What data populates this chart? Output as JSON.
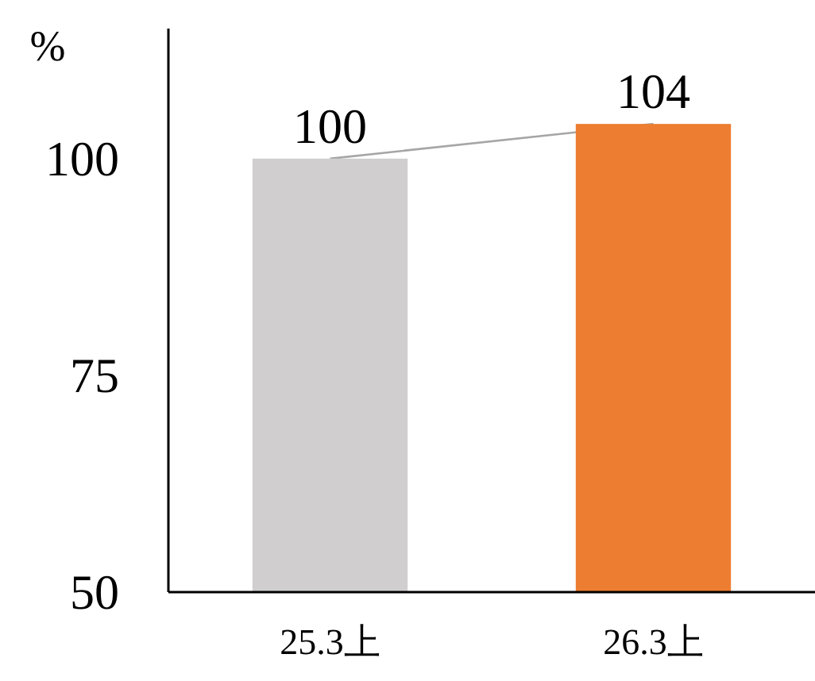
{
  "chart_data": {
    "type": "bar",
    "ylabel": "%",
    "categories": [
      "25.3上",
      "26.3上"
    ],
    "series": [
      {
        "values": [
          100,
          104
        ],
        "colors": [
          "#d0cece",
          "#ed7d31"
        ],
        "value_labels": [
          "100",
          "104"
        ]
      },
      {
        "type": "line",
        "values": [
          100,
          104
        ],
        "color": "#a6a6a6",
        "value_labels": [
          null,
          null
        ]
      }
    ],
    "ylim": [
      50,
      115
    ],
    "yticks": [
      50,
      75,
      100
    ],
    "grid": false
  }
}
